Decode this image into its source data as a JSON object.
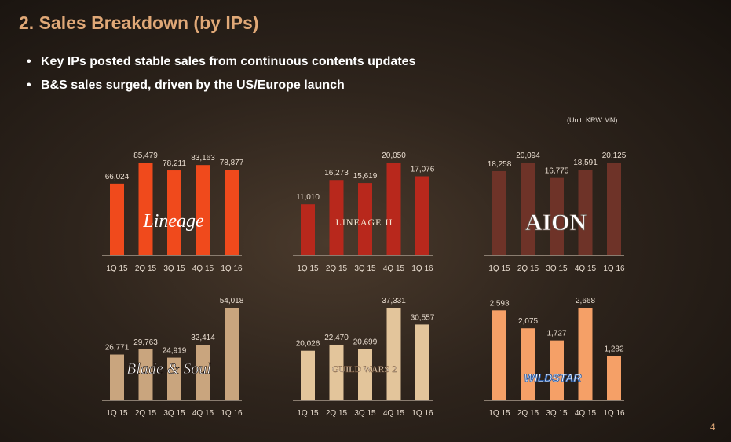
{
  "page": {
    "title": "2. Sales Breakdown (by IPs)",
    "bullets": [
      "Key IPs posted stable sales from continuous contents updates",
      "B&S sales surged, driven by the US/Europe launch"
    ],
    "unit": "(Unit: KRW MN)",
    "page_number": "4"
  },
  "chart_data": [
    {
      "type": "bar",
      "logo": "Lineage",
      "categories": [
        "1Q 15",
        "2Q 15",
        "3Q 15",
        "4Q 15",
        "1Q 16"
      ],
      "values": [
        66024,
        85479,
        78211,
        83163,
        78877
      ],
      "labels": [
        "66,024",
        "85,479",
        "78,211",
        "83,163",
        "78,877"
      ],
      "color": "#f04a1c"
    },
    {
      "type": "bar",
      "logo": "LINEAGE II",
      "categories": [
        "1Q 15",
        "2Q 15",
        "3Q 15",
        "4Q 15",
        "1Q 16"
      ],
      "values": [
        11010,
        16273,
        15619,
        20050,
        17076
      ],
      "labels": [
        "11,010",
        "16,273",
        "15,619",
        "20,050",
        "17,076"
      ],
      "color": "#b8281c"
    },
    {
      "type": "bar",
      "logo": "AION",
      "categories": [
        "1Q 15",
        "2Q 15",
        "3Q 15",
        "4Q 15",
        "1Q 16"
      ],
      "values": [
        18258,
        20094,
        16775,
        18591,
        20125
      ],
      "labels": [
        "18,258",
        "20,094",
        "16,775",
        "18,591",
        "20,125"
      ],
      "color": "#6e3328"
    },
    {
      "type": "bar",
      "logo": "Blade & Soul",
      "categories": [
        "1Q 15",
        "2Q 15",
        "3Q 15",
        "4Q 15",
        "1Q 16"
      ],
      "values": [
        26771,
        29763,
        24919,
        32414,
        54018
      ],
      "labels": [
        "26,771",
        "29,763",
        "24,919",
        "32,414",
        "54,018"
      ],
      "color": "#c9a57e"
    },
    {
      "type": "bar",
      "logo": "GUILD WARS 2",
      "categories": [
        "1Q 15",
        "2Q 15",
        "3Q 15",
        "4Q 15",
        "1Q 16"
      ],
      "values": [
        20026,
        22470,
        20699,
        37331,
        30557
      ],
      "labels": [
        "20,026",
        "22,470",
        "20,699",
        "37,331",
        "30,557"
      ],
      "color": "#e3c59b"
    },
    {
      "type": "bar",
      "logo": "WILDSTAR",
      "categories": [
        "1Q 15",
        "2Q 15",
        "3Q 15",
        "4Q 15",
        "1Q 16"
      ],
      "values": [
        2593,
        2075,
        1727,
        2668,
        1282
      ],
      "labels": [
        "2,593",
        "2,075",
        "1,727",
        "2,668",
        "1,282"
      ],
      "color": "#f5a067"
    }
  ]
}
